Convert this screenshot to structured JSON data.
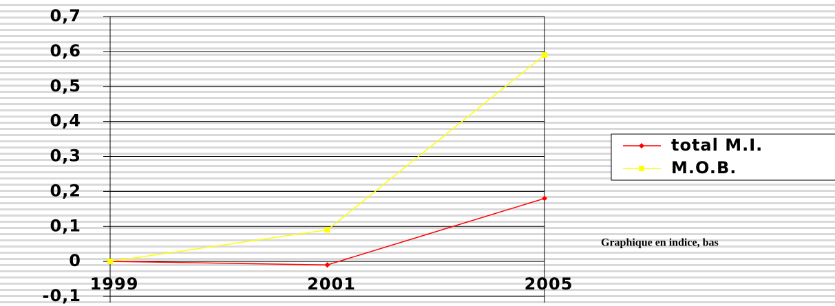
{
  "chart_data": {
    "type": "line",
    "categories": [
      "1999",
      "2001",
      "2005"
    ],
    "series": [
      {
        "name": "total M.I.",
        "color": "#ff0000",
        "marker": "diamond",
        "values": [
          0,
          -0.01,
          0.18
        ]
      },
      {
        "name": "M.O.B.",
        "color": "#ffff00",
        "marker": "square",
        "values": [
          0,
          0.09,
          0.59
        ]
      }
    ],
    "ylim": [
      -0.1,
      0.7
    ],
    "yticks": [
      {
        "value": -0.1,
        "label": "-0,1"
      },
      {
        "value": 0,
        "label": "0"
      },
      {
        "value": 0.1,
        "label": "0,1"
      },
      {
        "value": 0.2,
        "label": "0,2"
      },
      {
        "value": 0.3,
        "label": "0,3"
      },
      {
        "value": 0.4,
        "label": "0,4"
      },
      {
        "value": 0.5,
        "label": "0,5"
      },
      {
        "value": 0.6,
        "label": "0,6"
      },
      {
        "value": 0.7,
        "label": "0,7"
      }
    ],
    "grid": true,
    "legend": "right",
    "annotation": "Graphique en indice, bas"
  }
}
